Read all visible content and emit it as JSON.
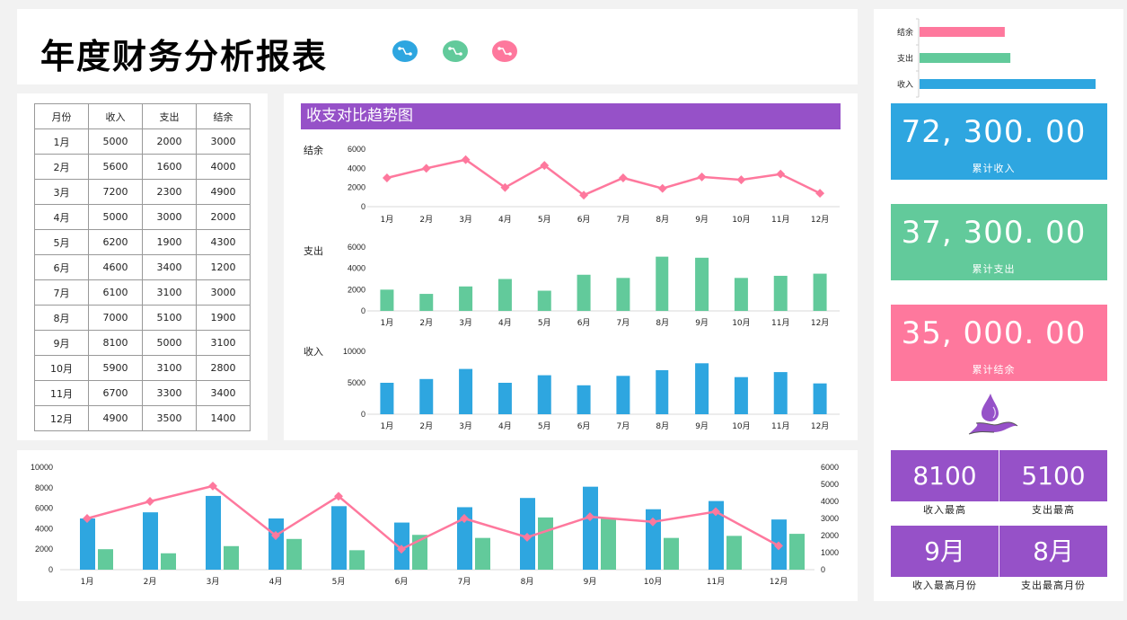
{
  "title": "年度财务分析报表",
  "header_icons": [
    {
      "name": "flow-icon",
      "color": "#2ea6e0"
    },
    {
      "name": "flow-icon",
      "color": "#62ca9b"
    },
    {
      "name": "flow-icon",
      "color": "#fe789d"
    }
  ],
  "colors": {
    "income": "#2ea6e0",
    "expense": "#62ca9b",
    "balance": "#fe789d",
    "accent": "#9651c8"
  },
  "table": {
    "headers": [
      "月份",
      "收入",
      "支出",
      "结余"
    ],
    "rows": [
      [
        "1月",
        "5000",
        "2000",
        "3000"
      ],
      [
        "2月",
        "5600",
        "1600",
        "4000"
      ],
      [
        "3月",
        "7200",
        "2300",
        "4900"
      ],
      [
        "4月",
        "5000",
        "3000",
        "2000"
      ],
      [
        "5月",
        "6200",
        "1900",
        "4300"
      ],
      [
        "6月",
        "4600",
        "3400",
        "1200"
      ],
      [
        "7月",
        "6100",
        "3100",
        "3000"
      ],
      [
        "8月",
        "7000",
        "5100",
        "1900"
      ],
      [
        "9月",
        "8100",
        "5000",
        "3100"
      ],
      [
        "10月",
        "5900",
        "3100",
        "2800"
      ],
      [
        "11月",
        "6700",
        "3300",
        "3400"
      ],
      [
        "12月",
        "4900",
        "3500",
        "1400"
      ]
    ]
  },
  "trend": {
    "header": "收支对比趋势图",
    "balance_label": "结余",
    "expense_label": "支出",
    "income_label": "收入"
  },
  "summary_bars": {
    "labels": [
      "结余",
      "支出",
      "收入"
    ],
    "values": [
      35000,
      37300,
      72300
    ]
  },
  "kpis": [
    {
      "value": "72, 300. 00",
      "label": "累计收入",
      "color": "#2ea6e0"
    },
    {
      "value": "37, 300. 00",
      "label": "累计支出",
      "color": "#62ca9b"
    },
    {
      "value": "35, 000. 00",
      "label": "累计结余",
      "color": "#fe789d"
    }
  ],
  "stats": [
    {
      "value": "8100",
      "label": "收入最高"
    },
    {
      "value": "5100",
      "label": "支出最高"
    },
    {
      "value": "9月",
      "label": "收入最高月份"
    },
    {
      "value": "8月",
      "label": "支出最高月份"
    }
  ],
  "chart_data": [
    {
      "type": "line",
      "title": "结余",
      "categories": [
        "1月",
        "2月",
        "3月",
        "4月",
        "5月",
        "6月",
        "7月",
        "8月",
        "9月",
        "10月",
        "11月",
        "12月"
      ],
      "values": [
        3000,
        4000,
        4900,
        2000,
        4300,
        1200,
        3000,
        1900,
        3100,
        2800,
        3400,
        1400
      ],
      "yticks": [
        0,
        2000,
        4000,
        6000
      ],
      "ylim": [
        0,
        6000
      ]
    },
    {
      "type": "bar",
      "title": "支出",
      "categories": [
        "1月",
        "2月",
        "3月",
        "4月",
        "5月",
        "6月",
        "7月",
        "8月",
        "9月",
        "10月",
        "11月",
        "12月"
      ],
      "values": [
        2000,
        1600,
        2300,
        3000,
        1900,
        3400,
        3100,
        5100,
        5000,
        3100,
        3300,
        3500
      ],
      "yticks": [
        0,
        2000,
        4000,
        6000
      ],
      "ylim": [
        0,
        6000
      ]
    },
    {
      "type": "bar",
      "title": "收入",
      "categories": [
        "1月",
        "2月",
        "3月",
        "4月",
        "5月",
        "6月",
        "7月",
        "8月",
        "9月",
        "10月",
        "11月",
        "12月"
      ],
      "values": [
        5000,
        5600,
        7200,
        5000,
        6200,
        4600,
        6100,
        7000,
        8100,
        5900,
        6700,
        4900
      ],
      "yticks": [
        0,
        5000,
        10000
      ],
      "ylim": [
        0,
        10000
      ]
    },
    {
      "type": "bar",
      "title": "收支组合图",
      "categories": [
        "1月",
        "2月",
        "3月",
        "4月",
        "5月",
        "6月",
        "7月",
        "8月",
        "9月",
        "10月",
        "11月",
        "12月"
      ],
      "series": [
        {
          "name": "收入",
          "type": "bar",
          "axis": "left",
          "values": [
            5000,
            5600,
            7200,
            5000,
            6200,
            4600,
            6100,
            7000,
            8100,
            5900,
            6700,
            4900
          ]
        },
        {
          "name": "支出",
          "type": "bar",
          "axis": "left",
          "values": [
            2000,
            1600,
            2300,
            3000,
            1900,
            3400,
            3100,
            5100,
            5000,
            3100,
            3300,
            3500
          ]
        },
        {
          "name": "结余",
          "type": "line",
          "axis": "right",
          "values": [
            3000,
            4000,
            4900,
            2000,
            4300,
            1200,
            3000,
            1900,
            3100,
            2800,
            3400,
            1400
          ]
        }
      ],
      "yticks_left": [
        0,
        2000,
        4000,
        6000,
        8000,
        10000
      ],
      "ylim_left": [
        0,
        10000
      ],
      "yticks_right": [
        0,
        1000,
        2000,
        3000,
        4000,
        5000,
        6000
      ],
      "ylim_right": [
        0,
        6000
      ]
    },
    {
      "type": "bar",
      "title": "汇总",
      "orientation": "horizontal",
      "categories": [
        "结余",
        "支出",
        "收入"
      ],
      "values": [
        35000,
        37300,
        72300
      ]
    }
  ]
}
